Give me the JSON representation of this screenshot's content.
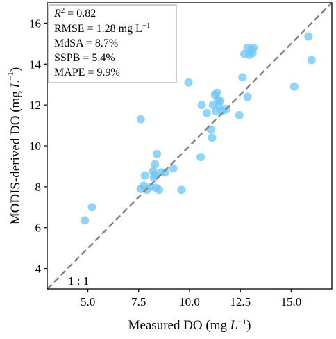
{
  "chart_data": {
    "type": "scatter",
    "title": "",
    "xlabel": "Measured DO (mg L⁻¹)",
    "ylabel": "MODIS-derived DO (mg L⁻¹)",
    "xlabel_parts": {
      "pre": "Measured DO (mg ",
      "var": "L",
      "sup": "−1",
      "post": ")"
    },
    "ylabel_parts": {
      "pre": "MODIS-derived DO (mg ",
      "var": "L",
      "sup": "−1",
      "post": ")"
    },
    "xlim": [
      3.0,
      17.0
    ],
    "ylim": [
      3.0,
      17.0
    ],
    "xticks": [
      5.0,
      7.5,
      10.0,
      12.5,
      15.0
    ],
    "xtick_labels": [
      "5.0",
      "7.5",
      "10.0",
      "12.5",
      "15.0"
    ],
    "yticks": [
      4,
      6,
      8,
      10,
      12,
      14,
      16
    ],
    "ytick_labels": [
      "4",
      "6",
      "8",
      "10",
      "12",
      "14",
      "16"
    ],
    "grid": false,
    "reference_line": {
      "label": "1 : 1",
      "from": [
        3.0,
        3.0
      ],
      "to": [
        17.0,
        17.0
      ],
      "color": "#808080",
      "style": "dashed"
    },
    "stats_box": {
      "placement": "top-left",
      "lines": [
        {
          "html": "<tspan font-style=\"italic\">R</tspan><tspan baseline-shift=\"super\" font-size=\"11\">2</tspan><tspan> = 0.82</tspan>",
          "text": "R² = 0.82"
        },
        {
          "html": "<tspan>RMSE  = 1.28 mg L</tspan><tspan baseline-shift=\"super\" font-size=\"11\">−1</tspan>",
          "text": "RMSE = 1.28 mg L⁻¹"
        },
        {
          "html": "<tspan>MdSA  = 8.7%</tspan>",
          "text": "MdSA = 8.7%"
        },
        {
          "html": "<tspan>SSPB  = 5.4%</tspan>",
          "text": "SSPB = 5.4%"
        },
        {
          "html": "<tspan>MAPE  = 9.9%</tspan>",
          "text": "MAPE = 9.9%"
        }
      ]
    },
    "marker_color": "#6ec6f5",
    "series": [
      {
        "points": [
          [
            4.85,
            6.35
          ],
          [
            5.2,
            7.0
          ],
          [
            7.6,
            11.3
          ],
          [
            7.6,
            7.9
          ],
          [
            7.75,
            8.05
          ],
          [
            7.8,
            8.55
          ],
          [
            7.9,
            7.85
          ],
          [
            8.1,
            8.0
          ],
          [
            8.2,
            8.75
          ],
          [
            8.25,
            8.45
          ],
          [
            8.3,
            8.6
          ],
          [
            8.3,
            9.1
          ],
          [
            8.35,
            7.95
          ],
          [
            8.4,
            9.6
          ],
          [
            8.5,
            7.85
          ],
          [
            8.6,
            8.7
          ],
          [
            8.8,
            8.7
          ],
          [
            9.2,
            8.9
          ],
          [
            9.6,
            7.85
          ],
          [
            9.95,
            13.1
          ],
          [
            10.55,
            9.45
          ],
          [
            10.6,
            12.0
          ],
          [
            10.85,
            11.6
          ],
          [
            11.05,
            10.8
          ],
          [
            11.1,
            10.4
          ],
          [
            11.15,
            12.0
          ],
          [
            11.25,
            12.5
          ],
          [
            11.35,
            12.6
          ],
          [
            11.3,
            11.7
          ],
          [
            11.5,
            12.2
          ],
          [
            11.6,
            11.7
          ],
          [
            11.8,
            11.8
          ],
          [
            11.45,
            11.95
          ],
          [
            11.4,
            12.25
          ],
          [
            12.45,
            11.5
          ],
          [
            12.6,
            13.35
          ],
          [
            12.7,
            14.5
          ],
          [
            12.85,
            12.4
          ],
          [
            12.85,
            14.8
          ],
          [
            12.95,
            14.45
          ],
          [
            13.05,
            14.7
          ],
          [
            13.1,
            14.55
          ],
          [
            13.15,
            14.8
          ],
          [
            15.15,
            12.9
          ],
          [
            15.85,
            15.35
          ],
          [
            16.0,
            14.2
          ]
        ]
      }
    ]
  }
}
